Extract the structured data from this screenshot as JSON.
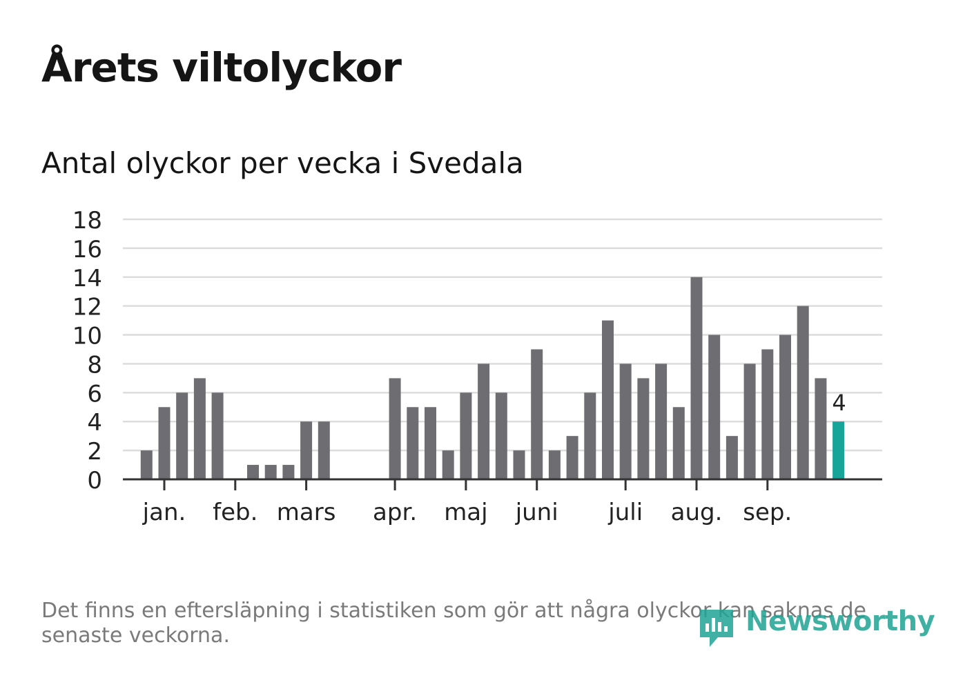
{
  "header": {
    "title": "Årets viltolyckor",
    "subtitle": "Antal olyckor per vecka i Svedala"
  },
  "footer": {
    "note": "Det finns en eftersläpning i statistiken som gör att några olyckor kan saknas de senaste veckorna.",
    "brand": "Newsworthy"
  },
  "colors": {
    "bar": "#6e6d72",
    "highlight": "#17a599",
    "grid": "#dcdcdc",
    "axis": "#333333",
    "text": "#222222"
  },
  "chart_data": {
    "type": "bar",
    "title": "Antal olyckor per vecka i Svedala",
    "xlabel": "",
    "ylabel": "",
    "ylim": [
      0,
      18
    ],
    "yticks": [
      0,
      2,
      4,
      6,
      8,
      10,
      12,
      14,
      16,
      18
    ],
    "weeks": 40,
    "values": [
      0,
      2,
      5,
      6,
      7,
      6,
      0,
      1,
      1,
      1,
      4,
      4,
      0,
      0,
      0,
      7,
      5,
      5,
      2,
      6,
      8,
      6,
      2,
      9,
      2,
      3,
      6,
      11,
      8,
      7,
      8,
      5,
      14,
      10,
      3,
      8,
      9,
      10,
      12,
      7,
      4
    ],
    "highlight_last": true,
    "last_value_label": "4",
    "month_ticks": [
      {
        "label": "jan.",
        "week": 2
      },
      {
        "label": "feb.",
        "week": 6
      },
      {
        "label": "mars",
        "week": 10
      },
      {
        "label": "apr.",
        "week": 15
      },
      {
        "label": "maj",
        "week": 19
      },
      {
        "label": "juni",
        "week": 23
      },
      {
        "label": "juli",
        "week": 28
      },
      {
        "label": "aug.",
        "week": 32
      },
      {
        "label": "sep.",
        "week": 36
      }
    ],
    "grid": true,
    "legend": "none"
  }
}
